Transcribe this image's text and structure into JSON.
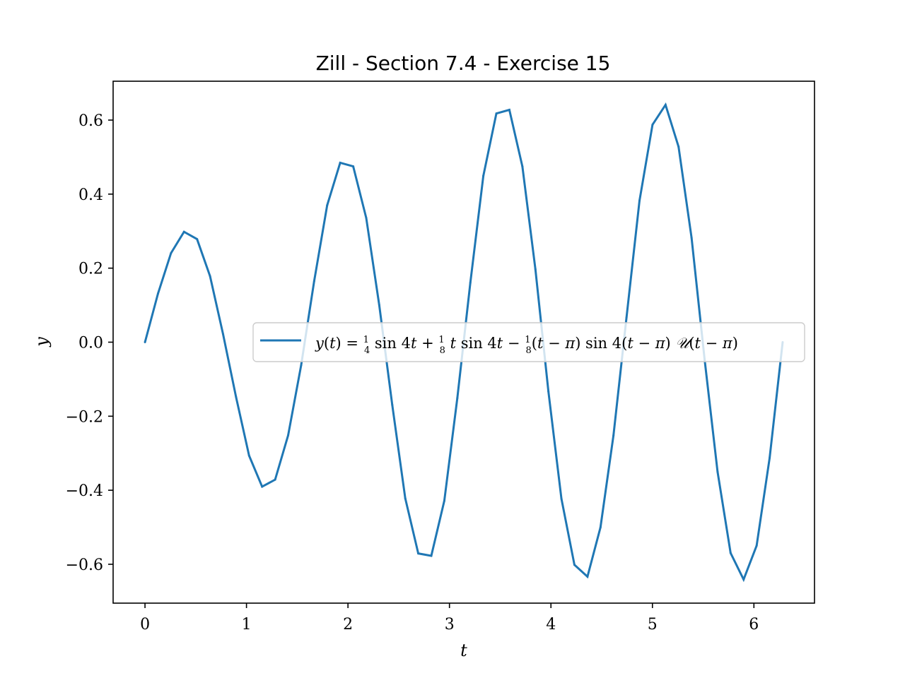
{
  "chart_data": {
    "type": "line",
    "title": "Zill - Section 7.4 - Exercise 15",
    "xlabel": "t",
    "ylabel": "y",
    "xlim": [
      -0.314,
      6.597
    ],
    "ylim": [
      -0.705,
      0.705
    ],
    "x_ticks": [
      0,
      1,
      2,
      3,
      4,
      5,
      6
    ],
    "x_tick_labels": [
      "0",
      "1",
      "2",
      "3",
      "4",
      "5",
      "6"
    ],
    "y_ticks": [
      -0.6,
      -0.4,
      -0.2,
      0.0,
      0.2,
      0.4,
      0.6
    ],
    "y_tick_labels": [
      "−0.6",
      "−0.4",
      "−0.2",
      "0.0",
      "0.2",
      "0.4",
      "0.6"
    ],
    "grid": false,
    "legend_position": "center-right",
    "series": [
      {
        "name": "y(t) = ¼ sin 4t + ⅛ t sin 4t − ⅛ (t − π) sin 4(t − π) 𝒰(t − π)",
        "color": "#1f77b4",
        "x": [
          0.0,
          0.1282,
          0.2565,
          0.3847,
          0.5129,
          0.6411,
          0.7694,
          0.8976,
          1.0258,
          1.1541,
          1.2823,
          1.4105,
          1.5387,
          1.667,
          1.7952,
          1.9234,
          2.0517,
          2.1799,
          2.3081,
          2.4363,
          2.5646,
          2.6928,
          2.821,
          2.9493,
          3.0775,
          3.2057,
          3.3339,
          3.4622,
          3.5904,
          3.7186,
          3.8468,
          3.9751,
          4.1033,
          4.2315,
          4.3598,
          4.488,
          4.6162,
          4.7444,
          4.8727,
          5.0009,
          5.1291,
          5.2574,
          5.3856,
          5.5138,
          5.642,
          5.7703,
          5.8985,
          6.0267,
          6.155,
          6.2832
        ],
        "y": [
          0.0,
          0.1314,
          0.2407,
          0.2982,
          0.2784,
          0.1784,
          0.0216,
          -0.1487,
          -0.3065,
          -0.3903,
          -0.3714,
          -0.2517,
          -0.0622,
          0.165,
          0.3699,
          0.4847,
          0.4749,
          0.3358,
          0.1004,
          -0.1694,
          -0.4219,
          -0.5708,
          -0.5771,
          -0.4286,
          -0.1513,
          0.1604,
          0.4493,
          0.6178,
          0.6277,
          0.4748,
          0.1973,
          -0.1331,
          -0.4229,
          -0.6015,
          -0.6335,
          -0.5004,
          -0.2518,
          0.0662,
          0.3824,
          0.5876,
          0.6412,
          0.5281,
          0.2823,
          -0.0457,
          -0.3504,
          -0.5695,
          -0.6412,
          -0.5498,
          -0.3125,
          0.0
        ]
      }
    ]
  }
}
